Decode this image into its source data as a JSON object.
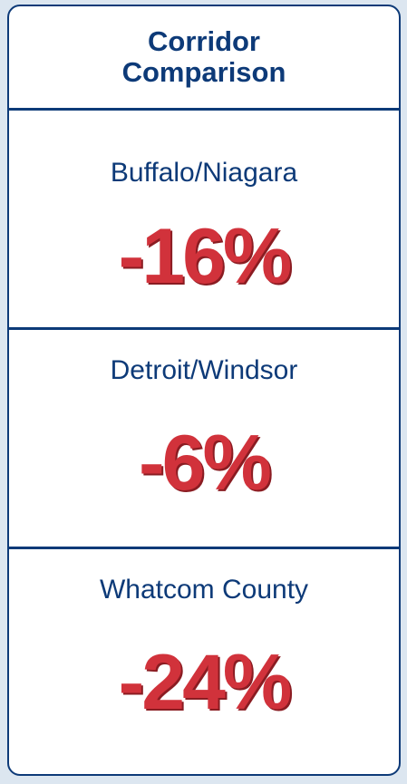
{
  "title": "Corridor Comparison",
  "corridors": [
    {
      "name": "Buffalo/Niagara",
      "value": "-16%"
    },
    {
      "name": "Detroit/Windsor",
      "value": "-6%"
    },
    {
      "name": "Whatcom County",
      "value": "-24%"
    }
  ]
}
